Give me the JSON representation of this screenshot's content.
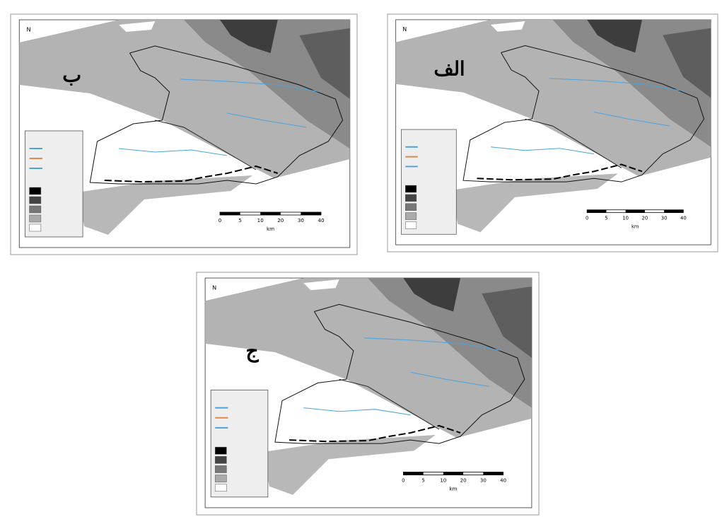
{
  "panels": [
    {
      "label": "ب",
      "north": "N",
      "scale": {
        "ticks": [
          "0",
          "5",
          "10",
          "20",
          "30",
          "40"
        ],
        "unit": "km"
      }
    },
    {
      "label": "الف",
      "north": "N",
      "scale": {
        "ticks": [
          "0",
          "5",
          "10",
          "20",
          "30",
          "40"
        ],
        "unit": "km"
      }
    },
    {
      "label": "ج",
      "north": "N",
      "scale": {
        "ticks": [
          "0",
          "5",
          "10",
          "20",
          "30",
          "40"
        ],
        "unit": "km"
      }
    }
  ]
}
